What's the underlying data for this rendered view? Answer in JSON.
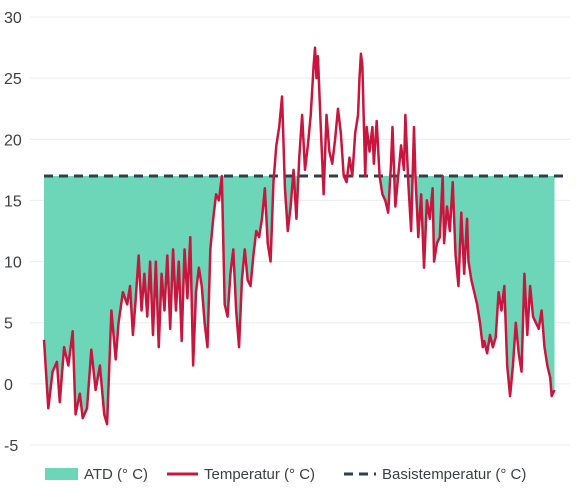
{
  "chart_data": {
    "type": "area",
    "ylim": [
      -5,
      30
    ],
    "y_ticks": [
      -5,
      0,
      5,
      10,
      15,
      20,
      25,
      30
    ],
    "y_tick_labels": [
      "-5",
      "0",
      "5",
      "10",
      "15",
      "20",
      "25",
      "30"
    ],
    "grid": true,
    "legend_position": "bottom",
    "base_temperature": 17,
    "x_count": 365,
    "series": [
      {
        "name": "ATD (° C)",
        "kind": "area",
        "color": "#6dd6b8"
      },
      {
        "name": "Temperatur (° C)",
        "kind": "line",
        "color": "#c8163e"
      },
      {
        "name": "Basistemperatur (° C)",
        "kind": "dashed-line",
        "color": "#2e3f4f"
      }
    ],
    "temperature_keypoints": [
      [
        0,
        3.6
      ],
      [
        3,
        -2.0
      ],
      [
        6,
        1.0
      ],
      [
        9,
        1.8
      ],
      [
        11,
        -1.5
      ],
      [
        14,
        3.0
      ],
      [
        17,
        1.5
      ],
      [
        20,
        4.3
      ],
      [
        22,
        -2.5
      ],
      [
        25,
        -0.8
      ],
      [
        27,
        -2.8
      ],
      [
        30,
        -2.0
      ],
      [
        33,
        2.8
      ],
      [
        36,
        -0.5
      ],
      [
        39,
        1.5
      ],
      [
        42,
        -2.5
      ],
      [
        44,
        -3.3
      ],
      [
        47,
        6.0
      ],
      [
        50,
        2.0
      ],
      [
        52,
        5.0
      ],
      [
        55,
        7.5
      ],
      [
        58,
        6.5
      ],
      [
        60,
        8.0
      ],
      [
        62,
        4.0
      ],
      [
        64,
        7.0
      ],
      [
        66,
        10.5
      ],
      [
        68,
        6.0
      ],
      [
        70,
        9.0
      ],
      [
        72,
        5.5
      ],
      [
        74,
        10.0
      ],
      [
        76,
        4.0
      ],
      [
        78,
        10.0
      ],
      [
        80,
        3.0
      ],
      [
        82,
        9.0
      ],
      [
        84,
        6.0
      ],
      [
        86,
        10.5
      ],
      [
        88,
        4.5
      ],
      [
        90,
        11.0
      ],
      [
        92,
        6.0
      ],
      [
        94,
        10.0
      ],
      [
        96,
        3.5
      ],
      [
        98,
        11.0
      ],
      [
        100,
        7.0
      ],
      [
        102,
        12.0
      ],
      [
        104,
        1.5
      ],
      [
        106,
        7.5
      ],
      [
        108,
        9.5
      ],
      [
        110,
        8.0
      ],
      [
        112,
        5.0
      ],
      [
        114,
        3.0
      ],
      [
        116,
        11.0
      ],
      [
        118,
        13.5
      ],
      [
        120,
        15.5
      ],
      [
        122,
        15.0
      ],
      [
        124,
        17.0
      ],
      [
        126,
        6.5
      ],
      [
        128,
        5.5
      ],
      [
        130,
        9.0
      ],
      [
        132,
        11.0
      ],
      [
        134,
        6.0
      ],
      [
        136,
        3.0
      ],
      [
        138,
        8.5
      ],
      [
        140,
        11.0
      ],
      [
        142,
        8.5
      ],
      [
        144,
        8.0
      ],
      [
        146,
        10.5
      ],
      [
        148,
        12.5
      ],
      [
        150,
        12.0
      ],
      [
        152,
        13.5
      ],
      [
        154,
        16.0
      ],
      [
        156,
        11.5
      ],
      [
        158,
        10.0
      ],
      [
        160,
        16.5
      ],
      [
        162,
        19.5
      ],
      [
        164,
        21.0
      ],
      [
        166,
        23.5
      ],
      [
        168,
        16.0
      ],
      [
        170,
        12.5
      ],
      [
        172,
        14.5
      ],
      [
        174,
        17.5
      ],
      [
        176,
        13.5
      ],
      [
        178,
        18.5
      ],
      [
        180,
        22.0
      ],
      [
        182,
        17.5
      ],
      [
        184,
        19.5
      ],
      [
        186,
        22.0
      ],
      [
        188,
        26.0
      ],
      [
        189,
        27.5
      ],
      [
        190,
        25.0
      ],
      [
        191,
        26.8
      ],
      [
        193,
        21.0
      ],
      [
        195,
        15.5
      ],
      [
        197,
        22.0
      ],
      [
        199,
        19.0
      ],
      [
        201,
        18.0
      ],
      [
        203,
        20.0
      ],
      [
        205,
        22.5
      ],
      [
        207,
        20.5
      ],
      [
        209,
        17.0
      ],
      [
        211,
        16.5
      ],
      [
        213,
        18.5
      ],
      [
        215,
        17.0
      ],
      [
        217,
        20.5
      ],
      [
        219,
        22.0
      ],
      [
        220,
        25.0
      ],
      [
        221,
        27.0
      ],
      [
        222,
        26.0
      ],
      [
        224,
        17.0
      ],
      [
        225,
        21.0
      ],
      [
        227,
        19.0
      ],
      [
        229,
        21.0
      ],
      [
        230,
        18.0
      ],
      [
        232,
        21.5
      ],
      [
        234,
        17.0
      ],
      [
        236,
        15.5
      ],
      [
        238,
        15.0
      ],
      [
        240,
        14.0
      ],
      [
        242,
        18.0
      ],
      [
        243,
        21.0
      ],
      [
        245,
        14.5
      ],
      [
        247,
        17.0
      ],
      [
        249,
        19.5
      ],
      [
        251,
        17.5
      ],
      [
        252,
        22.0
      ],
      [
        254,
        16.5
      ],
      [
        256,
        12.5
      ],
      [
        258,
        21.0
      ],
      [
        259,
        17.0
      ],
      [
        261,
        12.0
      ],
      [
        263,
        15.5
      ],
      [
        265,
        9.5
      ],
      [
        267,
        15.0
      ],
      [
        269,
        13.5
      ],
      [
        271,
        16.0
      ],
      [
        272,
        10.0
      ],
      [
        274,
        11.5
      ],
      [
        276,
        12.0
      ],
      [
        278,
        17.0
      ],
      [
        279,
        11.5
      ],
      [
        281,
        14.5
      ],
      [
        283,
        12.5
      ],
      [
        285,
        16.5
      ],
      [
        287,
        10.5
      ],
      [
        289,
        8.0
      ],
      [
        291,
        14.0
      ],
      [
        293,
        9.0
      ],
      [
        295,
        13.5
      ],
      [
        296,
        10.0
      ],
      [
        298,
        8.5
      ],
      [
        300,
        7.5
      ],
      [
        302,
        6.5
      ],
      [
        304,
        5.0
      ],
      [
        306,
        3.0
      ],
      [
        307,
        3.5
      ],
      [
        309,
        2.5
      ],
      [
        311,
        4.0
      ],
      [
        313,
        3.0
      ],
      [
        315,
        3.8
      ],
      [
        317,
        7.5
      ],
      [
        319,
        6.0
      ],
      [
        321,
        8.0
      ],
      [
        323,
        1.5
      ],
      [
        325,
        -1.0
      ],
      [
        327,
        1.5
      ],
      [
        329,
        5.0
      ],
      [
        331,
        2.5
      ],
      [
        333,
        1.0
      ],
      [
        335,
        9.0
      ],
      [
        337,
        4.0
      ],
      [
        339,
        8.0
      ],
      [
        341,
        5.5
      ],
      [
        343,
        5.0
      ],
      [
        345,
        4.5
      ],
      [
        347,
        6.0
      ],
      [
        349,
        3.0
      ],
      [
        351,
        1.5
      ],
      [
        353,
        0.5
      ],
      [
        354,
        -1.0
      ],
      [
        356,
        -0.5
      ]
    ]
  }
}
